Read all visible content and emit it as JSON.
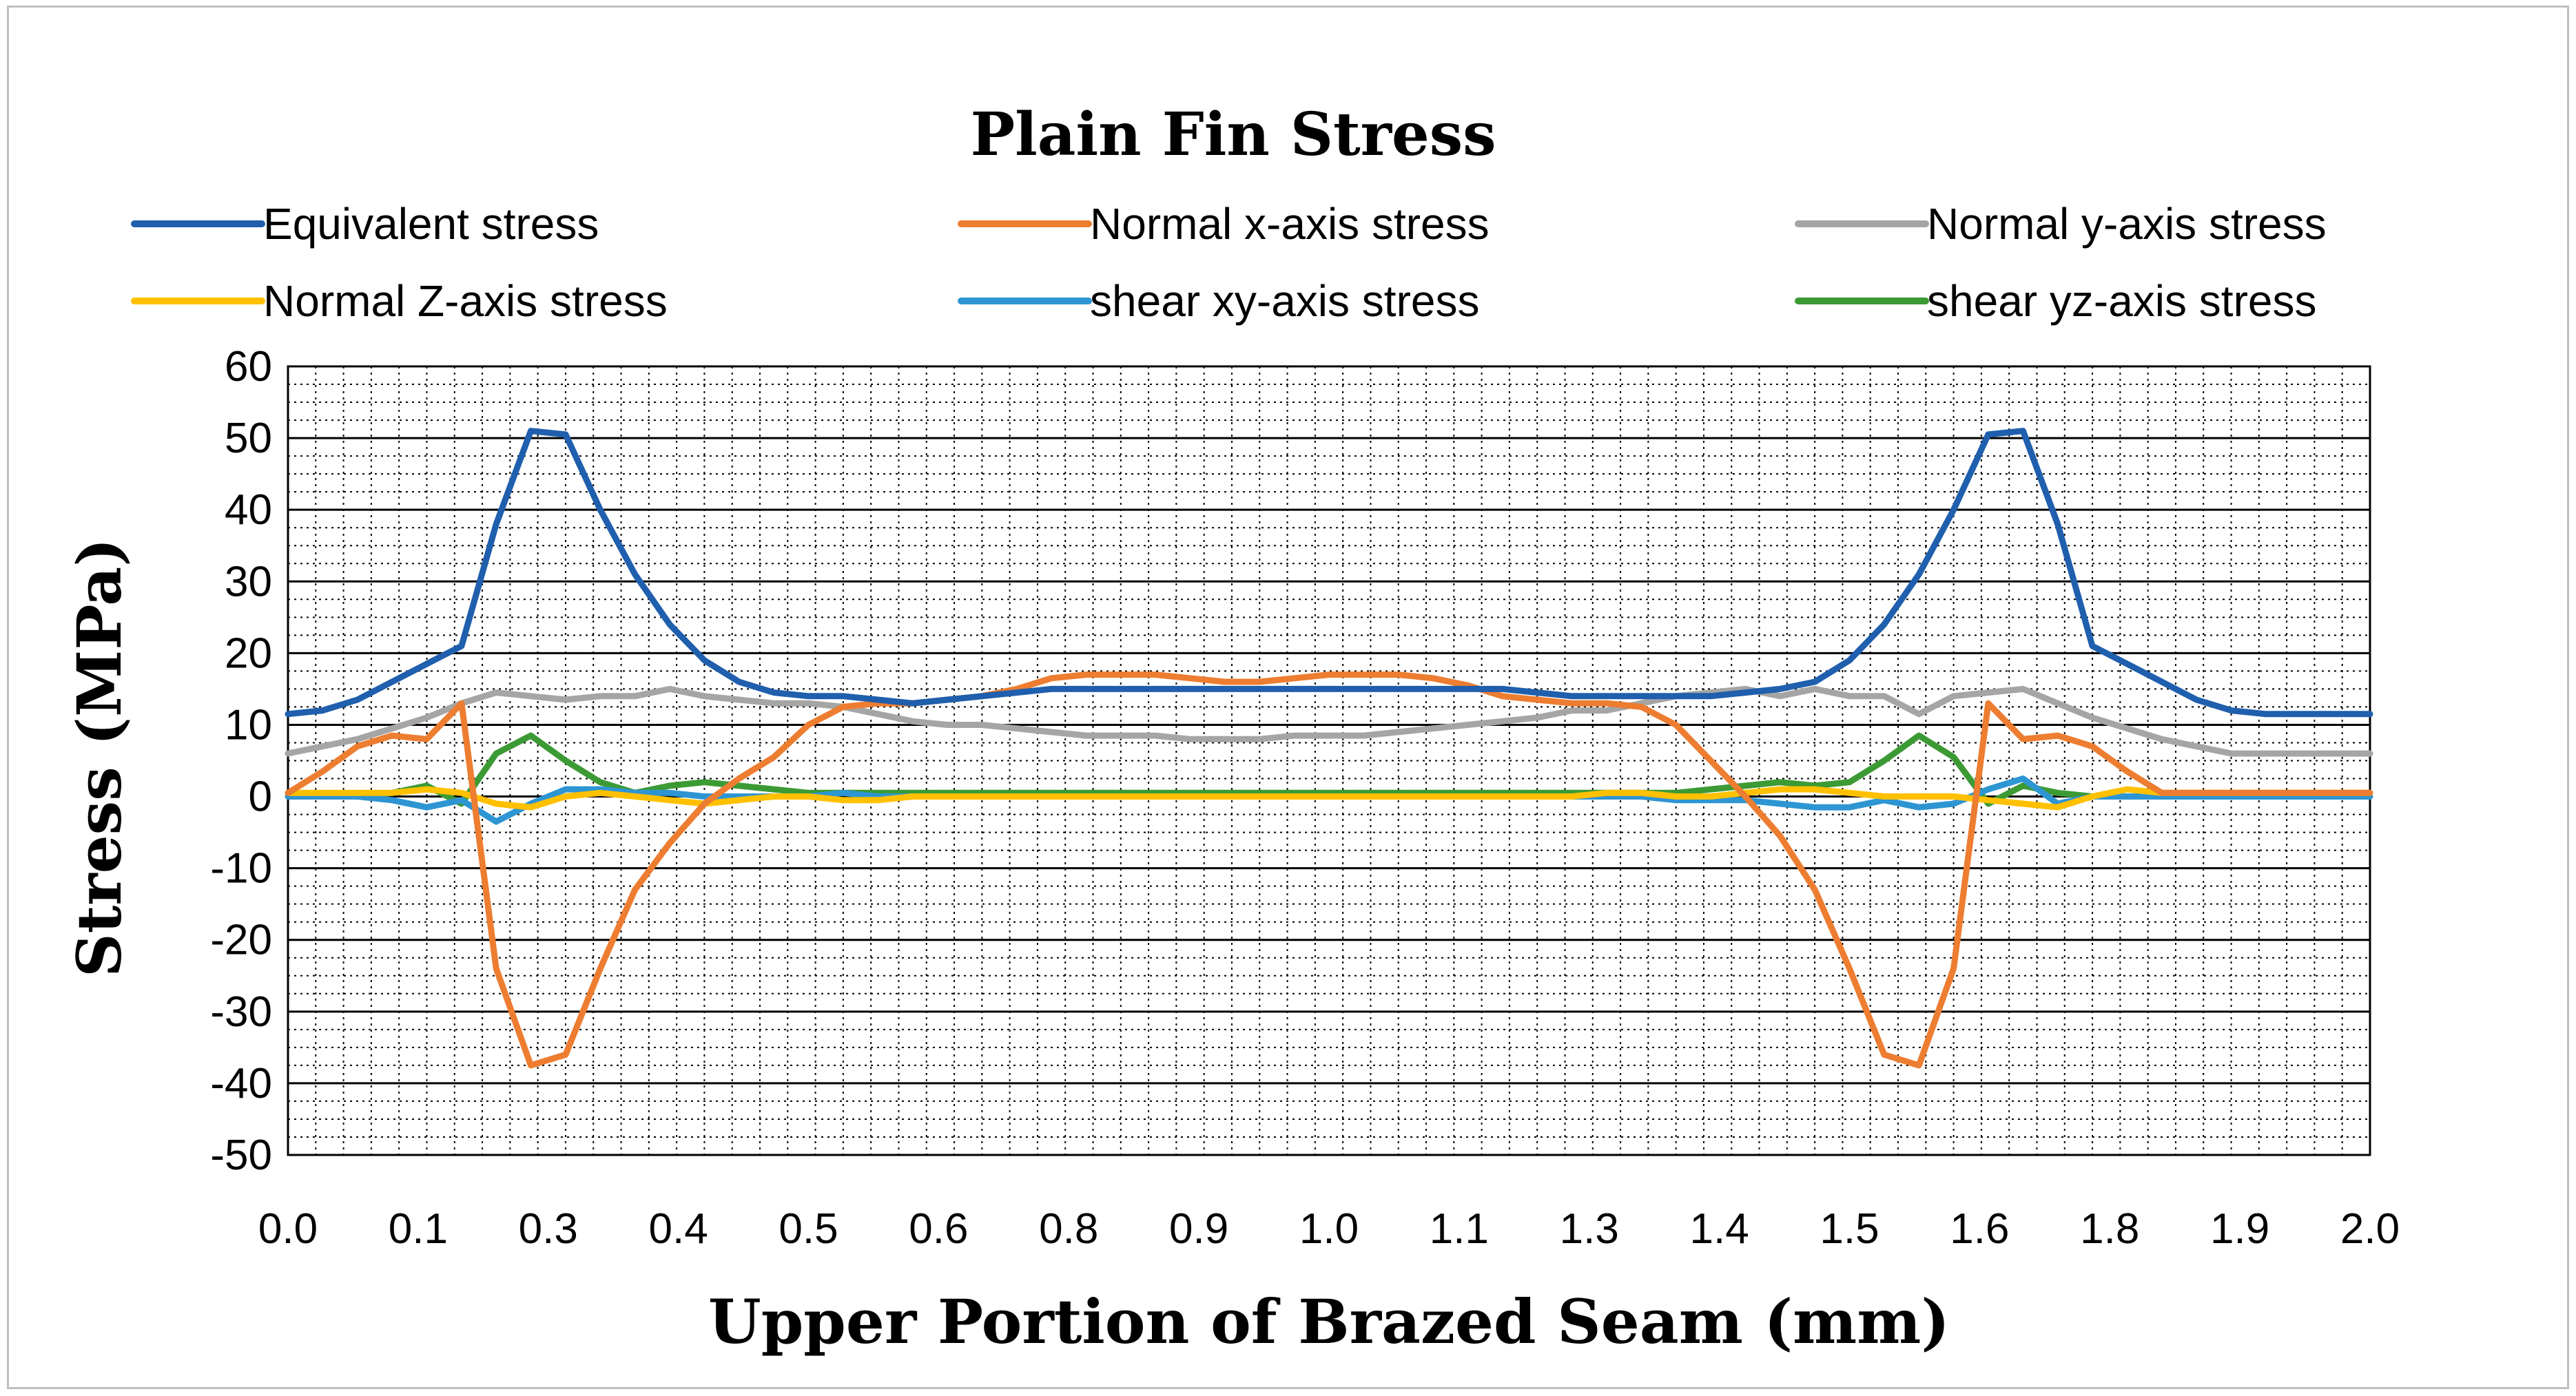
{
  "chart_data": {
    "type": "line",
    "title": "Plain Fin Stress",
    "xlabel": "Upper Portion of Brazed Seam (mm)",
    "ylabel": "Stress (MPa)",
    "xlim": [
      0.0,
      2.0
    ],
    "ylim": [
      -50,
      60
    ],
    "x_ticks": [
      "0.0",
      "0.1",
      "0.3",
      "0.4",
      "0.5",
      "0.6",
      "0.8",
      "0.9",
      "1.0",
      "1.1",
      "1.3",
      "1.4",
      "1.5",
      "1.6",
      "1.8",
      "1.9",
      "2.0"
    ],
    "y_ticks": [
      "60",
      "50",
      "40",
      "30",
      "20",
      "10",
      "0",
      "-10",
      "-20",
      "-30",
      "-40",
      "-50"
    ],
    "grid": true,
    "legend_position": "top",
    "x": [
      0.0,
      0.0333,
      0.0667,
      0.1,
      0.1333,
      0.1667,
      0.2,
      0.2333,
      0.2667,
      0.3,
      0.3333,
      0.3667,
      0.4,
      0.4333,
      0.4667,
      0.5,
      0.5333,
      0.5667,
      0.6,
      0.6333,
      0.6667,
      0.7,
      0.7333,
      0.7667,
      0.8,
      0.8333,
      0.8667,
      0.9,
      0.9333,
      0.9667,
      1.0,
      1.0333,
      1.0667,
      1.1,
      1.1333,
      1.1667,
      1.2,
      1.2333,
      1.2667,
      1.3,
      1.3333,
      1.3667,
      1.4,
      1.4333,
      1.4667,
      1.5,
      1.5333,
      1.5667,
      1.6,
      1.6333,
      1.6667,
      1.7,
      1.7333,
      1.7667,
      1.8,
      1.8333,
      1.8667,
      1.9,
      1.9333,
      1.9667,
      2.0
    ],
    "series": [
      {
        "name": "Equivalent stress",
        "color": "#1f5fad",
        "values": [
          11.5,
          12,
          13.5,
          16,
          18.5,
          21,
          38,
          51,
          50.5,
          40,
          31,
          24,
          19,
          16,
          14.5,
          14,
          14,
          13.5,
          13,
          13.5,
          14,
          14.5,
          15,
          15,
          15,
          15,
          15,
          15,
          15,
          15,
          15,
          15,
          15,
          15,
          15,
          15,
          14.5,
          14,
          14,
          14,
          14,
          14,
          14.5,
          15,
          16,
          19,
          24,
          31,
          40,
          50.5,
          51,
          38,
          21,
          18.5,
          16,
          13.5,
          12,
          11.5,
          11.5,
          11.5,
          11.5
        ]
      },
      {
        "name": "Normal x-axis stress",
        "color": "#ed7d31",
        "values": [
          0.5,
          3.5,
          7,
          8.5,
          8,
          13,
          -24,
          -37.5,
          -36,
          -24,
          -13,
          -6.5,
          -1,
          2.5,
          5.5,
          10,
          12.5,
          13,
          13,
          13.5,
          14,
          15,
          16.5,
          17,
          17,
          17,
          16.5,
          16,
          16,
          16.5,
          17,
          17,
          17,
          16.5,
          15.5,
          14,
          13.5,
          13,
          13,
          12.5,
          10,
          5,
          0,
          -5.5,
          -13,
          -24,
          -36,
          -37.5,
          -24,
          13,
          8,
          8.5,
          7,
          3.5,
          0.5,
          0.5,
          0.5,
          0.5,
          0.5,
          0.5,
          0.5
        ]
      },
      {
        "name": "Normal y-axis stress",
        "color": "#a5a5a5",
        "values": [
          6,
          7,
          8,
          9.5,
          11,
          13,
          14.5,
          14,
          13.5,
          14,
          14,
          15,
          14,
          13.5,
          13,
          13,
          12.5,
          11.5,
          10.5,
          10,
          10,
          9.5,
          9,
          8.5,
          8.5,
          8.5,
          8,
          8,
          8,
          8.5,
          8.5,
          8.5,
          9,
          9.5,
          10,
          10.5,
          11,
          12,
          12,
          13,
          14,
          14.5,
          15,
          14,
          15,
          14,
          14,
          11.5,
          14,
          14.5,
          15,
          13,
          11,
          9.5,
          8,
          7,
          6,
          6,
          6,
          6,
          6
        ]
      },
      {
        "name": "Normal Z-axis stress",
        "color": "#ffc000",
        "values": [
          0.5,
          0.5,
          0.5,
          0.5,
          1,
          0.5,
          -1,
          -1.5,
          0,
          0.5,
          0,
          -0.5,
          -1,
          -0.5,
          0,
          0,
          -0.5,
          -0.5,
          0,
          0,
          0,
          0,
          0,
          0,
          0,
          0,
          0,
          0,
          0,
          0,
          0,
          0,
          0,
          0,
          0,
          0,
          0,
          0,
          0.5,
          0.5,
          0,
          0,
          0.5,
          1,
          1,
          0.5,
          0,
          0,
          0,
          -0.5,
          -1,
          -1.5,
          0,
          1,
          0.5,
          0.5,
          0.5,
          0.5,
          0.5,
          0.5,
          0.5
        ]
      },
      {
        "name": "shear xy-axis stress",
        "color": "#2e95d3",
        "values": [
          0,
          0,
          0,
          -0.5,
          -1.5,
          -0.5,
          -3.5,
          -1,
          1,
          1,
          0.5,
          0.5,
          0,
          0,
          0,
          0,
          0.5,
          0,
          0,
          0,
          0,
          0,
          0,
          0,
          0,
          0,
          0,
          0,
          0,
          0,
          0,
          0,
          0,
          0,
          0,
          0,
          0,
          0,
          0,
          0,
          -0.5,
          -0.5,
          -0.5,
          -1,
          -1.5,
          -1.5,
          -0.5,
          -1.5,
          -1,
          1,
          2.5,
          -1,
          0,
          0,
          0,
          0,
          0,
          0,
          0,
          0,
          0
        ]
      },
      {
        "name": "shear yz-axis stress",
        "color": "#3c9a35",
        "values": [
          0,
          0,
          0,
          0.5,
          1.5,
          -1,
          6,
          8.5,
          5,
          2,
          0.5,
          1.5,
          2,
          1.5,
          1,
          0.5,
          0.5,
          0.5,
          0.5,
          0.5,
          0.5,
          0.5,
          0.5,
          0.5,
          0.5,
          0.5,
          0.5,
          0.5,
          0.5,
          0.5,
          0.5,
          0.5,
          0.5,
          0.5,
          0.5,
          0.5,
          0.5,
          0.5,
          0.5,
          0.5,
          0.5,
          1,
          1.5,
          2,
          1.5,
          2,
          5,
          8.5,
          5.5,
          -1,
          1.5,
          0.5,
          0,
          0,
          0,
          0,
          0,
          0,
          0,
          0,
          0
        ]
      }
    ]
  }
}
